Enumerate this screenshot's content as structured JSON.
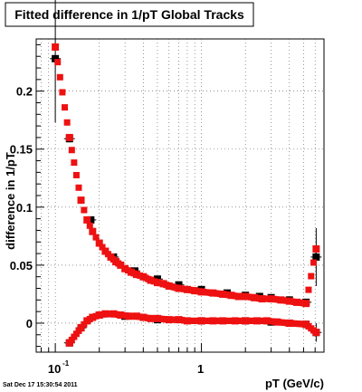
{
  "chart_data": {
    "type": "scatter",
    "title": "Fitted difference in 1/pT  Global Tracks",
    "xlabel": "pT (GeV/c)",
    "ylabel": "difference in 1/pT",
    "xscale": "log",
    "xlim": [
      0.074,
      6.9
    ],
    "ylim": [
      -0.025,
      0.245
    ],
    "grid": true,
    "x_ticks": [
      {
        "label": "10",
        "sup": "-1",
        "value": 0.1
      },
      {
        "label": "1",
        "sup": "",
        "value": 1
      }
    ],
    "y_ticks": [
      {
        "label": "0",
        "value": 0
      },
      {
        "label": "0.05",
        "value": 0.05
      },
      {
        "label": "0.1",
        "value": 0.1
      },
      {
        "label": "0.15",
        "value": 0.15
      },
      {
        "label": "0.2",
        "value": 0.2
      }
    ],
    "footer": "Sat Dec 17 15:30:54 2011",
    "colors": {
      "black_series": "#000000",
      "red_series": "#ee1111",
      "grid": "#555555"
    },
    "series": [
      {
        "color": "#000000",
        "points": [
          {
            "x": 0.1,
            "y": 0.228,
            "err": 0.055
          },
          {
            "x": 0.125,
            "y": 0.159,
            "err": 0.003
          },
          {
            "x": 0.175,
            "y": 0.089
          },
          {
            "x": 0.25,
            "y": 0.057
          },
          {
            "x": 0.35,
            "y": 0.045
          },
          {
            "x": 0.5,
            "y": 0.038
          },
          {
            "x": 0.7,
            "y": 0.033
          },
          {
            "x": 1.0,
            "y": 0.029
          },
          {
            "x": 1.5,
            "y": 0.026
          },
          {
            "x": 2.0,
            "y": 0.024
          },
          {
            "x": 2.5,
            "y": 0.023
          },
          {
            "x": 3.0,
            "y": 0.022
          },
          {
            "x": 4.0,
            "y": 0.02
          },
          {
            "x": 5.2,
            "y": 0.018
          },
          {
            "x": 6.1,
            "y": 0.057,
            "err": 0.025
          },
          {
            "x": 0.125,
            "y": -0.017
          },
          {
            "x": 0.15,
            "y": -0.004
          },
          {
            "x": 0.2,
            "y": 0.007
          },
          {
            "x": 0.3,
            "y": 0.006
          },
          {
            "x": 0.5,
            "y": 0.003
          },
          {
            "x": 1.0,
            "y": 0.002
          },
          {
            "x": 2.0,
            "y": 0.002
          },
          {
            "x": 3.0,
            "y": 0.001
          },
          {
            "x": 4.0,
            "y": 0.0
          },
          {
            "x": 5.2,
            "y": -0.001
          },
          {
            "x": 6.1,
            "y": -0.008,
            "err": 0.008
          }
        ]
      },
      {
        "color": "#ee1111",
        "segments": [
          {
            "points": [
              {
                "x": 0.1,
                "y": 0.238
              },
              {
                "x": 0.125,
                "y": 0.16
              },
              {
                "x": 0.15,
                "y": 0.106
              },
              {
                "x": 0.165,
                "y": 0.089
              },
              {
                "x": 0.18,
                "y": 0.079
              },
              {
                "x": 0.2,
                "y": 0.069
              },
              {
                "x": 0.22,
                "y": 0.062
              },
              {
                "x": 0.24,
                "y": 0.057
              },
              {
                "x": 0.26,
                "y": 0.053
              },
              {
                "x": 0.28,
                "y": 0.05
              },
              {
                "x": 0.3,
                "y": 0.047
              },
              {
                "x": 0.33,
                "y": 0.044
              },
              {
                "x": 0.36,
                "y": 0.042
              },
              {
                "x": 0.4,
                "y": 0.04
              },
              {
                "x": 0.45,
                "y": 0.037
              },
              {
                "x": 0.5,
                "y": 0.035
              },
              {
                "x": 0.55,
                "y": 0.034
              },
              {
                "x": 0.6,
                "y": 0.032
              },
              {
                "x": 0.7,
                "y": 0.03
              },
              {
                "x": 0.8,
                "y": 0.029
              },
              {
                "x": 0.9,
                "y": 0.028
              },
              {
                "x": 1.0,
                "y": 0.027
              },
              {
                "x": 1.2,
                "y": 0.026
              },
              {
                "x": 1.4,
                "y": 0.025
              },
              {
                "x": 1.6,
                "y": 0.024
              },
              {
                "x": 1.8,
                "y": 0.023
              },
              {
                "x": 2.0,
                "y": 0.023
              },
              {
                "x": 2.3,
                "y": 0.022
              },
              {
                "x": 2.6,
                "y": 0.021
              },
              {
                "x": 3.0,
                "y": 0.021
              },
              {
                "x": 3.5,
                "y": 0.02
              },
              {
                "x": 4.0,
                "y": 0.019
              },
              {
                "x": 4.5,
                "y": 0.018
              },
              {
                "x": 5.2,
                "y": 0.017
              },
              {
                "x": 6.1,
                "y": 0.064
              }
            ]
          },
          {
            "points": [
              {
                "x": 0.125,
                "y": -0.017
              },
              {
                "x": 0.15,
                "y": -0.004
              },
              {
                "x": 0.165,
                "y": 0.002
              },
              {
                "x": 0.18,
                "y": 0.005
              },
              {
                "x": 0.2,
                "y": 0.007
              },
              {
                "x": 0.22,
                "y": 0.008
              },
              {
                "x": 0.25,
                "y": 0.008
              },
              {
                "x": 0.28,
                "y": 0.007
              },
              {
                "x": 0.32,
                "y": 0.006
              },
              {
                "x": 0.36,
                "y": 0.006
              },
              {
                "x": 0.4,
                "y": 0.005
              },
              {
                "x": 0.45,
                "y": 0.004
              },
              {
                "x": 0.5,
                "y": 0.004
              },
              {
                "x": 0.6,
                "y": 0.003
              },
              {
                "x": 0.7,
                "y": 0.003
              },
              {
                "x": 0.8,
                "y": 0.002
              },
              {
                "x": 1.0,
                "y": 0.002
              },
              {
                "x": 1.2,
                "y": 0.002
              },
              {
                "x": 1.4,
                "y": 0.002
              },
              {
                "x": 1.7,
                "y": 0.002
              },
              {
                "x": 2.0,
                "y": 0.002
              },
              {
                "x": 2.4,
                "y": 0.002
              },
              {
                "x": 2.8,
                "y": 0.002
              },
              {
                "x": 3.3,
                "y": 0.001
              },
              {
                "x": 4.0,
                "y": 0.0
              },
              {
                "x": 5.2,
                "y": -0.001
              },
              {
                "x": 6.1,
                "y": -0.008
              }
            ]
          }
        ]
      }
    ]
  }
}
